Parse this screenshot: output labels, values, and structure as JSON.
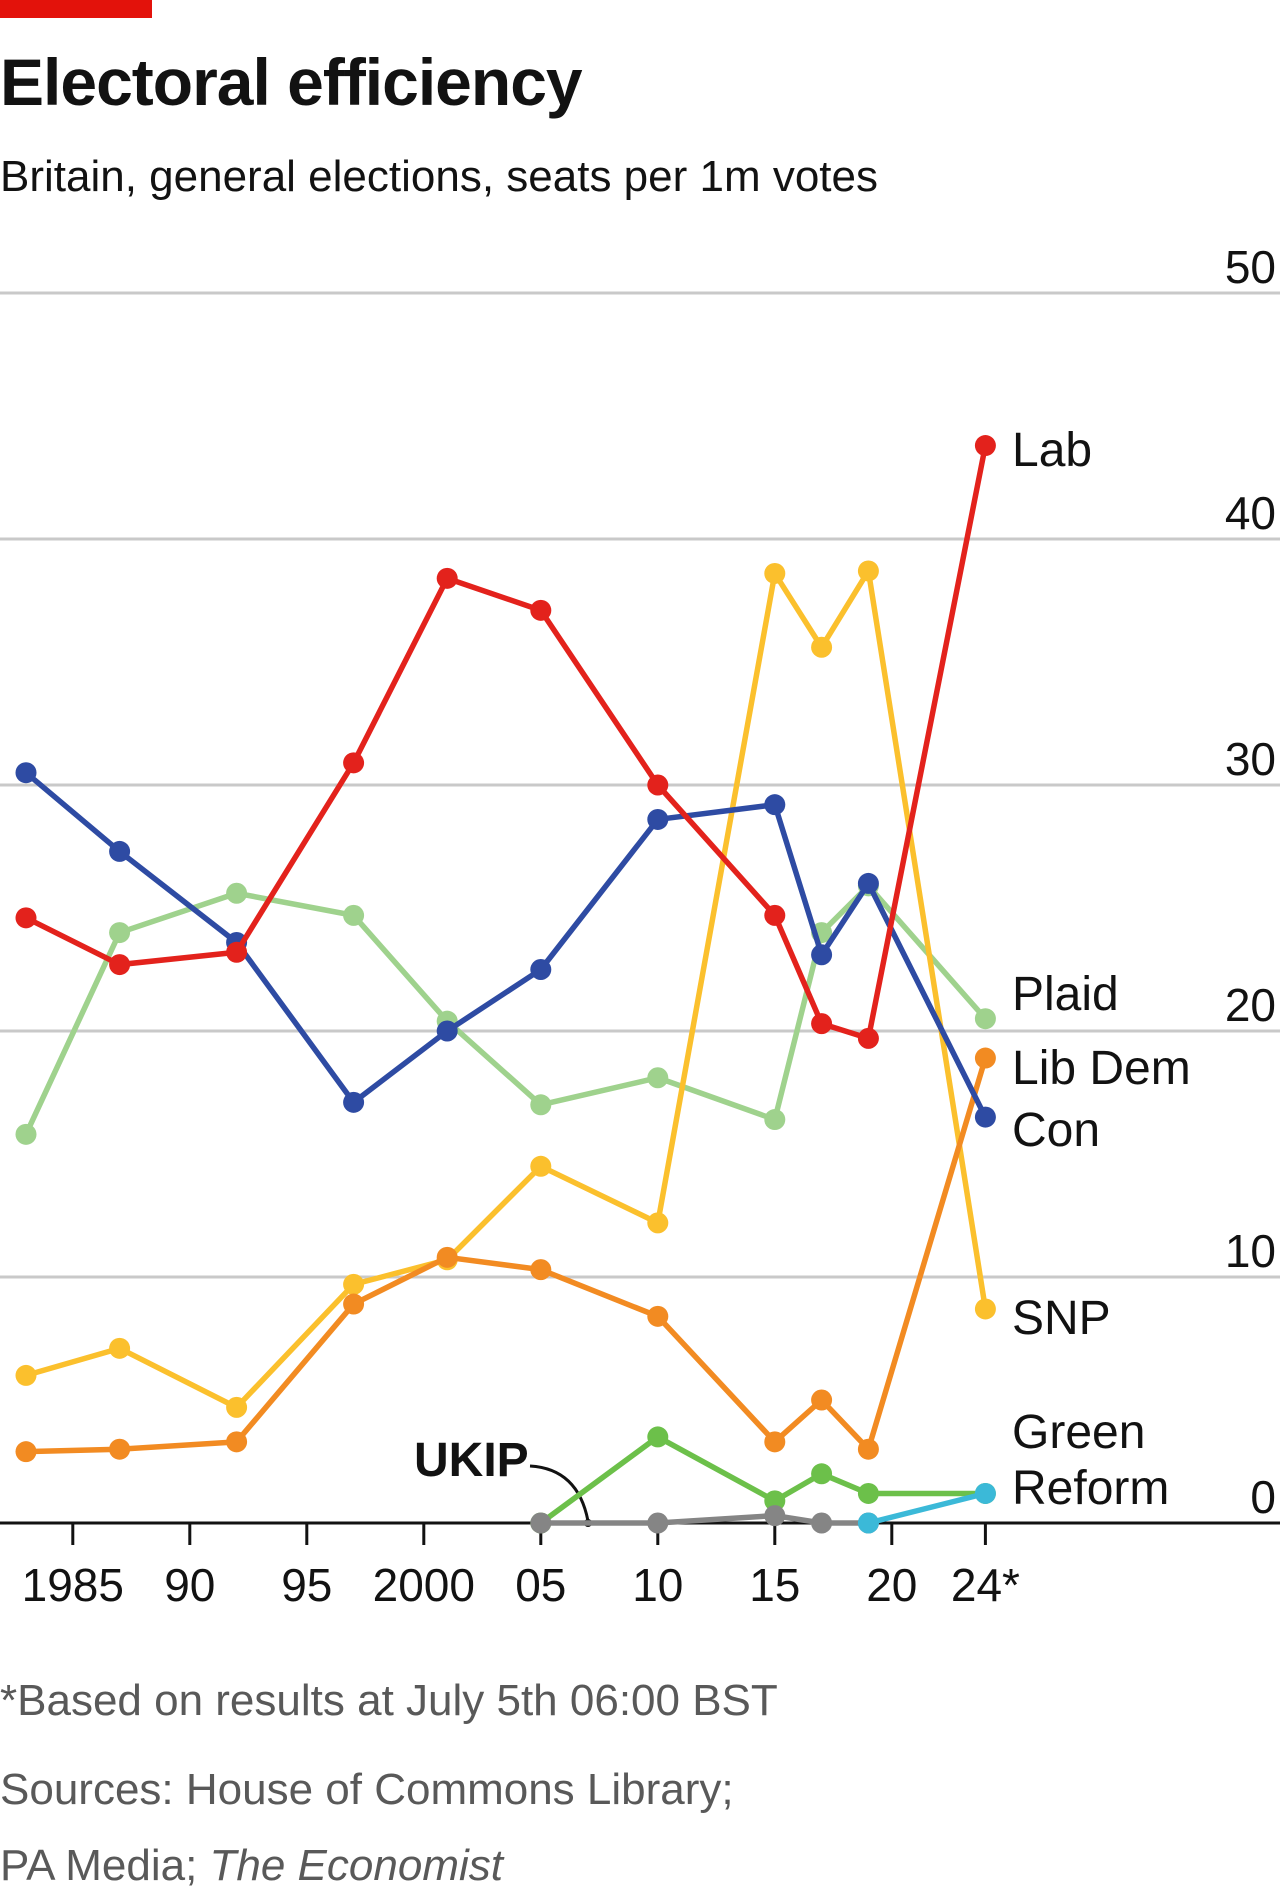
{
  "title": "Electoral efficiency",
  "subtitle": "Britain, general elections, seats per 1m votes",
  "footnote": "*Based on results at July 5th 06:00 BST",
  "sources": {
    "line1": "Sources: House of Commons Library;",
    "line2_prefix": "PA Media; ",
    "line2_italic": "The Economist"
  },
  "colors": {
    "accent": "#e3120b",
    "Lab": "#e3221c",
    "Con": "#2e4ba3",
    "Plaid": "#9fd28d",
    "Lib Dem": "#f28b22",
    "SNP": "#fbc02d",
    "Green": "#6cc04a",
    "Reform": "#3bb9d8",
    "UKIP": "#858585"
  },
  "chart_data": {
    "type": "line",
    "title": "Electoral efficiency",
    "subtitle": "Britain, general elections, seats per 1m votes",
    "x_ticks": [
      {
        "year": 1985,
        "label": "1985"
      },
      {
        "year": 1990,
        "label": "90"
      },
      {
        "year": 1995,
        "label": "95"
      },
      {
        "year": 2000,
        "label": "2000"
      },
      {
        "year": 2005,
        "label": "05"
      },
      {
        "year": 2010,
        "label": "10"
      },
      {
        "year": 2015,
        "label": "15"
      },
      {
        "year": 2020,
        "label": "20"
      },
      {
        "year": 2024,
        "label": "24*"
      }
    ],
    "y_ticks": [
      0,
      10,
      20,
      30,
      40,
      50
    ],
    "xlim": [
      1983,
      2024
    ],
    "ylim": [
      0,
      50
    ],
    "grid": true,
    "legend": "direct labels at right end of lines",
    "series": [
      {
        "name": "Plaid",
        "label": "Plaid",
        "x": [
          1983,
          1987,
          1992,
          1997,
          2001,
          2005,
          2010,
          2015,
          2017,
          2019,
          2024
        ],
        "y": [
          15.8,
          24.0,
          25.6,
          24.7,
          20.4,
          17.0,
          18.1,
          16.4,
          24.0,
          25.9,
          20.5
        ]
      },
      {
        "name": "SNP",
        "label": "SNP",
        "x": [
          1983,
          1987,
          1992,
          1997,
          2001,
          2005,
          2010,
          2015,
          2017,
          2019,
          2024
        ],
        "y": [
          6.0,
          7.1,
          4.7,
          9.7,
          10.7,
          14.5,
          12.2,
          38.6,
          35.6,
          38.7,
          8.7
        ]
      },
      {
        "name": "Lib Dem",
        "label": "Lib Dem",
        "x": [
          1983,
          1987,
          1992,
          1997,
          2001,
          2005,
          2010,
          2015,
          2017,
          2019,
          2024
        ],
        "y": [
          2.9,
          3.0,
          3.3,
          8.9,
          10.8,
          10.3,
          8.4,
          3.3,
          5.0,
          3.0,
          18.9
        ]
      },
      {
        "name": "Con",
        "label": "Con",
        "x": [
          1983,
          1987,
          1992,
          1997,
          2001,
          2005,
          2010,
          2015,
          2017,
          2019,
          2024
        ],
        "y": [
          30.5,
          27.3,
          23.6,
          17.1,
          20.0,
          22.5,
          28.6,
          29.2,
          23.1,
          26.0,
          16.5
        ]
      },
      {
        "name": "Lab",
        "label": "Lab",
        "x": [
          1983,
          1987,
          1992,
          1997,
          2001,
          2005,
          2010,
          2015,
          2017,
          2019,
          2024
        ],
        "y": [
          24.6,
          22.7,
          23.2,
          30.9,
          38.4,
          37.1,
          30.0,
          24.7,
          20.3,
          19.7,
          43.8
        ]
      },
      {
        "name": "Green",
        "label": "Green",
        "x": [
          2005,
          2010,
          2015,
          2017,
          2019,
          2024
        ],
        "y": [
          0.0,
          3.5,
          0.9,
          2.0,
          1.2,
          1.2
        ]
      },
      {
        "name": "UKIP",
        "label": "UKIP",
        "x": [
          2005,
          2010,
          2015,
          2017,
          2019
        ],
        "y": [
          0.0,
          0.0,
          0.3,
          0.0,
          0.0
        ]
      },
      {
        "name": "Reform",
        "label": "Reform",
        "x": [
          2019,
          2024
        ],
        "y": [
          0.0,
          1.2
        ]
      }
    ]
  }
}
